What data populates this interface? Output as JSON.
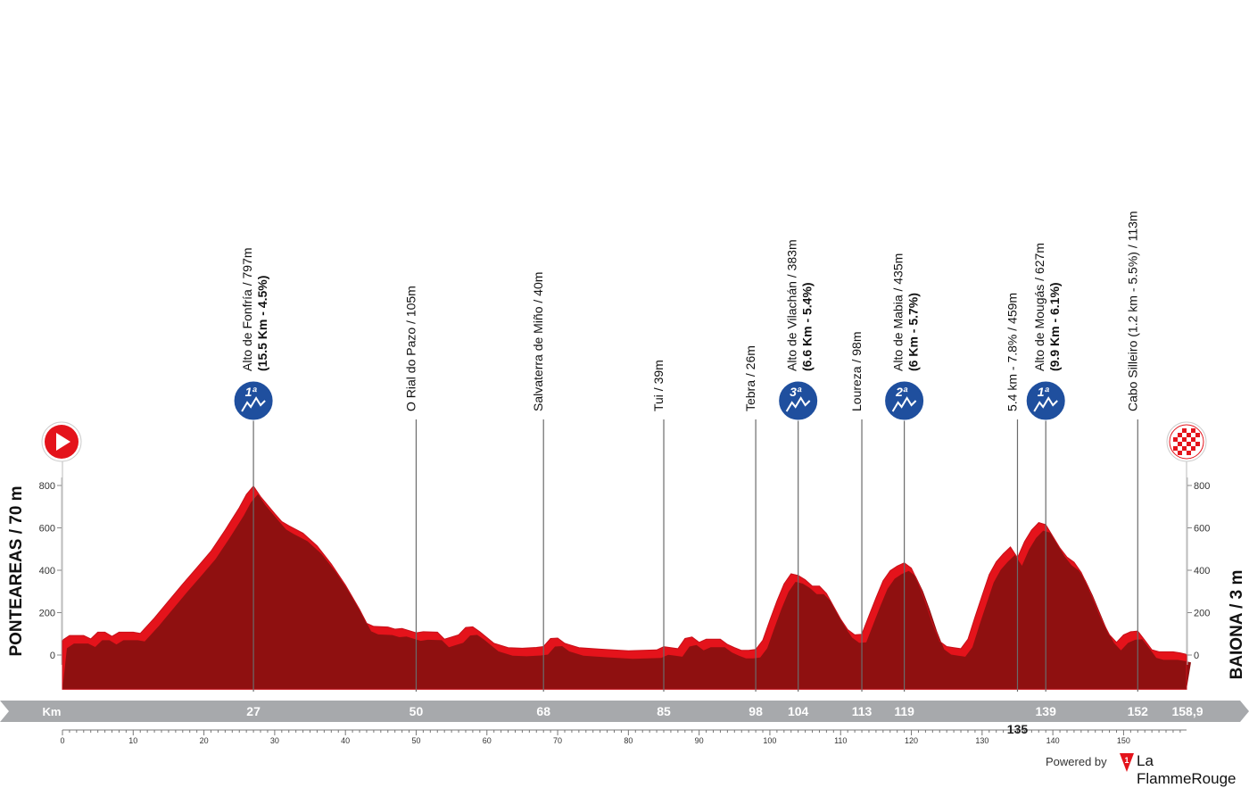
{
  "chart_data": {
    "type": "area",
    "title": "",
    "xlabel": "Km",
    "ylabel": "",
    "start_label": "PONTEAREAS / 70 m",
    "finish_label": "BAIONA / 3 m",
    "total_distance_label": "158,9",
    "xlim": [
      0,
      158.9
    ],
    "ylim": [
      -170,
      900
    ],
    "x_ticks": [
      0,
      10,
      20,
      30,
      40,
      50,
      60,
      70,
      80,
      90,
      100,
      110,
      120,
      130,
      140,
      150
    ],
    "y_ticks": [
      0,
      200,
      400,
      600,
      800
    ],
    "grid": false,
    "colors": {
      "fill_dark": "#8f1010",
      "fill_bright": "#e4131b",
      "band": "#a7a9ac",
      "climb_icon": "#1f4f9e"
    },
    "elevation": [
      [
        0,
        70
      ],
      [
        1,
        92
      ],
      [
        3,
        92
      ],
      [
        4,
        76
      ],
      [
        5,
        108
      ],
      [
        6,
        108
      ],
      [
        7,
        88
      ],
      [
        8,
        108
      ],
      [
        10,
        108
      ],
      [
        11,
        102
      ],
      [
        13,
        175
      ],
      [
        15,
        255
      ],
      [
        17,
        335
      ],
      [
        19,
        412
      ],
      [
        21,
        490
      ],
      [
        23,
        590
      ],
      [
        25,
        695
      ],
      [
        26,
        758
      ],
      [
        27,
        797
      ],
      [
        28,
        748
      ],
      [
        30,
        668
      ],
      [
        31,
        630
      ],
      [
        32,
        610
      ],
      [
        34,
        575
      ],
      [
        36,
        515
      ],
      [
        38,
        430
      ],
      [
        40,
        330
      ],
      [
        42,
        215
      ],
      [
        43,
        150
      ],
      [
        44,
        135
      ],
      [
        46,
        132
      ],
      [
        47,
        122
      ],
      [
        48,
        125
      ],
      [
        50,
        105
      ],
      [
        51,
        110
      ],
      [
        53,
        108
      ],
      [
        54,
        75
      ],
      [
        55,
        85
      ],
      [
        56,
        95
      ],
      [
        57,
        130
      ],
      [
        58,
        133
      ],
      [
        59,
        110
      ],
      [
        61,
        55
      ],
      [
        63,
        35
      ],
      [
        65,
        32
      ],
      [
        67,
        36
      ],
      [
        68,
        40
      ],
      [
        69,
        78
      ],
      [
        70,
        80
      ],
      [
        71,
        55
      ],
      [
        73,
        35
      ],
      [
        76,
        28
      ],
      [
        80,
        20
      ],
      [
        84,
        24
      ],
      [
        85,
        39
      ],
      [
        86,
        35
      ],
      [
        87,
        30
      ],
      [
        88,
        78
      ],
      [
        89,
        85
      ],
      [
        90,
        60
      ],
      [
        91,
        75
      ],
      [
        93,
        75
      ],
      [
        94,
        50
      ],
      [
        95,
        35
      ],
      [
        96,
        22
      ],
      [
        97,
        22
      ],
      [
        98,
        26
      ],
      [
        99,
        70
      ],
      [
        100,
        165
      ],
      [
        101,
        255
      ],
      [
        102,
        335
      ],
      [
        103,
        383
      ],
      [
        104,
        375
      ],
      [
        105,
        355
      ],
      [
        106,
        325
      ],
      [
        107,
        325
      ],
      [
        108,
        290
      ],
      [
        109,
        230
      ],
      [
        110,
        170
      ],
      [
        111,
        120
      ],
      [
        112,
        95
      ],
      [
        113,
        98
      ],
      [
        114,
        185
      ],
      [
        115,
        270
      ],
      [
        116,
        350
      ],
      [
        117,
        398
      ],
      [
        118,
        420
      ],
      [
        119,
        435
      ],
      [
        120,
        410
      ],
      [
        121,
        340
      ],
      [
        122,
        250
      ],
      [
        123,
        150
      ],
      [
        124,
        65
      ],
      [
        125,
        40
      ],
      [
        126,
        35
      ],
      [
        127,
        30
      ],
      [
        128,
        75
      ],
      [
        129,
        180
      ],
      [
        130,
        280
      ],
      [
        131,
        380
      ],
      [
        132,
        440
      ],
      [
        133,
        478
      ],
      [
        134,
        510
      ],
      [
        135,
        459
      ],
      [
        136,
        535
      ],
      [
        137,
        590
      ],
      [
        138,
        625
      ],
      [
        139,
        615
      ],
      [
        140,
        560
      ],
      [
        141,
        505
      ],
      [
        142,
        462
      ],
      [
        143,
        438
      ],
      [
        144,
        390
      ],
      [
        145,
        320
      ],
      [
        146,
        240
      ],
      [
        147,
        160
      ],
      [
        148,
        95
      ],
      [
        149,
        60
      ],
      [
        150,
        95
      ],
      [
        151,
        110
      ],
      [
        152,
        113
      ],
      [
        153,
        70
      ],
      [
        154,
        25
      ],
      [
        155,
        15
      ],
      [
        157,
        15
      ],
      [
        158,
        10
      ],
      [
        158.9,
        3
      ]
    ],
    "markers": [
      {
        "km": 0,
        "kind": "start"
      },
      {
        "km": 27,
        "kind": "climb",
        "category": "1ª",
        "label": "Alto de Fonfría / 797m",
        "detail": "(15.5 Km - 4.5%)",
        "km_label": "27"
      },
      {
        "km": 50,
        "kind": "point",
        "label": "O Rial do Pazo / 105m",
        "km_label": "50"
      },
      {
        "km": 68,
        "kind": "point",
        "label": "Salvaterra de Miño / 40m",
        "km_label": "68"
      },
      {
        "km": 85,
        "kind": "point",
        "label": "Tui / 39m",
        "km_label": "85"
      },
      {
        "km": 98,
        "kind": "point",
        "label": "Tebra / 26m",
        "km_label": "98"
      },
      {
        "km": 104,
        "kind": "climb",
        "category": "3ª",
        "label": "Alto de Vilachán / 383m",
        "detail": "(6.6 Km - 5.4%)",
        "km_label": "104"
      },
      {
        "km": 113,
        "kind": "point",
        "label": "Loureza / 98m",
        "km_label": "113"
      },
      {
        "km": 119,
        "kind": "climb",
        "category": "2ª",
        "label": "Alto de Mabia / 435m",
        "detail": "(6 Km - 5.7%)",
        "km_label": "119"
      },
      {
        "km": 135,
        "kind": "point",
        "label": "5.4 km - 7.8% / 459m",
        "km_label": "135",
        "km_label_below": true
      },
      {
        "km": 139,
        "kind": "climb",
        "category": "1ª",
        "label": "Alto de Mougás / 627m",
        "detail": "(9.9 Km - 6.1%)",
        "km_label": "139"
      },
      {
        "km": 152,
        "kind": "point",
        "label": "Cabo Silleiro (1.2 km - 5.5%) / 113m",
        "km_label": "152"
      },
      {
        "km": 158.9,
        "kind": "finish"
      }
    ]
  },
  "credit": {
    "powered_by": "Powered by",
    "brand": "La FlammeRouge"
  }
}
